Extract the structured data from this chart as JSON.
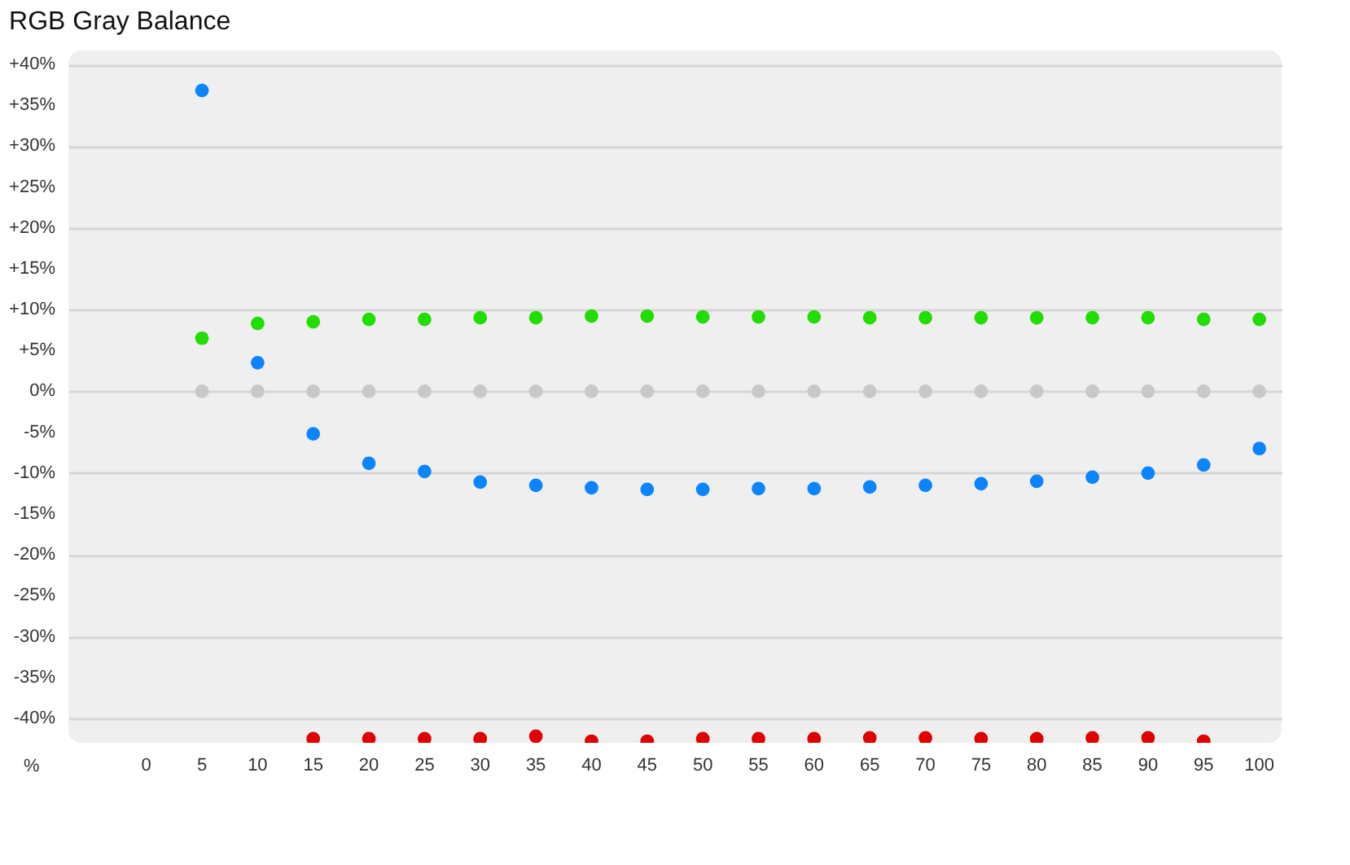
{
  "chart_data": {
    "type": "scatter",
    "title": "RGB Gray Balance",
    "xlabel": "%",
    "x": [
      5,
      10,
      15,
      20,
      25,
      30,
      35,
      40,
      45,
      50,
      55,
      60,
      65,
      70,
      75,
      80,
      85,
      90,
      95,
      100
    ],
    "series": [
      {
        "color": "#c8c8c8",
        "values": [
          0,
          0,
          0,
          0,
          0,
          0,
          0,
          0,
          0,
          0,
          0,
          0,
          0,
          0,
          0,
          0,
          0,
          0,
          0,
          0
        ]
      },
      {
        "color": "#e00000",
        "values": [
          null,
          null,
          -42.5,
          -42.5,
          -42.5,
          -42.5,
          -42.2,
          -42.8,
          -42.8,
          -42.5,
          -42.5,
          -42.5,
          -42.4,
          -42.4,
          -42.5,
          -42.5,
          -42.4,
          -42.4,
          -42.8,
          null
        ]
      },
      {
        "color": "#22dd00",
        "values": [
          6.5,
          8.3,
          8.5,
          8.8,
          8.8,
          9.0,
          9.0,
          9.2,
          9.2,
          9.1,
          9.1,
          9.1,
          9.0,
          9.0,
          9.0,
          9.0,
          9.0,
          9.0,
          8.8,
          8.8
        ]
      },
      {
        "color": "#0a84ff",
        "values": [
          36.8,
          3.5,
          -5.2,
          -8.8,
          -9.8,
          -11.1,
          -11.5,
          -11.8,
          -12.0,
          -12.0,
          -11.9,
          -11.9,
          -11.7,
          -11.5,
          -11.3,
          -11.0,
          -10.5,
          -10.0,
          -9.0,
          -7.0
        ]
      }
    ],
    "xlim": [
      -7,
      102
    ],
    "xticks": [
      0,
      5,
      10,
      15,
      20,
      25,
      30,
      35,
      40,
      45,
      50,
      55,
      60,
      65,
      70,
      75,
      80,
      85,
      90,
      95,
      100
    ],
    "ylim": [
      -43,
      41.7
    ],
    "yticks": [
      {
        "value": 40,
        "label": "+40%"
      },
      {
        "value": 35,
        "label": "+35%"
      },
      {
        "value": 30,
        "label": "+30%"
      },
      {
        "value": 25,
        "label": "+25%"
      },
      {
        "value": 20,
        "label": "+20%"
      },
      {
        "value": 15,
        "label": "+15%"
      },
      {
        "value": 10,
        "label": "+10%"
      },
      {
        "value": 5,
        "label": "+5%"
      },
      {
        "value": 0,
        "label": "0%"
      },
      {
        "value": -5,
        "label": "-5%"
      },
      {
        "value": -10,
        "label": "-10%"
      },
      {
        "value": -15,
        "label": "-15%"
      },
      {
        "value": -20,
        "label": "-20%"
      },
      {
        "value": -25,
        "label": "-25%"
      },
      {
        "value": -30,
        "label": "-30%"
      },
      {
        "value": -35,
        "label": "-35%"
      },
      {
        "value": -40,
        "label": "-40%"
      }
    ],
    "grid": "y",
    "marker": "circle"
  }
}
